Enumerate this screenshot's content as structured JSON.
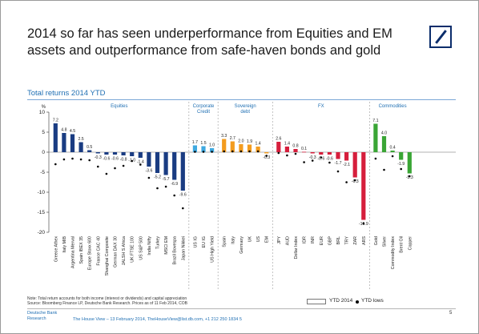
{
  "slide": {
    "title": "2014 so far has seen underperformance from Equities and EM assets and outperformance from safe-haven bonds and gold",
    "subtitle": "Total returns 2014 YTD",
    "note_line1": "Note: Total return accounts for both income (interest or dividends) and capital appreciation",
    "note_line2": "Source: Bloomberg Finance LP, Deutsche Bank Research. Prices as of 11 Feb 2014, COB",
    "footer_brand_line1": "Deutsche Bank",
    "footer_brand_line2": "Research",
    "footer_text": "The House View – 13 February 2014, TheHouseView@list.db.com, +1 212 250 1834 5",
    "page_number": "5",
    "brand_color": "#0b2d6b"
  },
  "chart_data": {
    "type": "bar",
    "ylabel": "%",
    "ylim": [
      -20,
      10
    ],
    "yticks": [
      10,
      5,
      0,
      -5,
      -10,
      -15,
      -20
    ],
    "legend": [
      {
        "label": "YTD 2014",
        "style": "outlined bar"
      },
      {
        "label": "YTD lows",
        "style": "black dot"
      }
    ],
    "groups": [
      {
        "name": "Equities",
        "color": "#1a3c82",
        "categories": [
          "Greece Athex",
          "Italy MIB",
          "Argentina Merval",
          "Spain IBEX 35",
          "Europe Stoxx 600",
          "France CAC 40",
          "Shanghai Composite",
          "German DAX 30",
          "JALSH S Africa",
          "UK FTSE 100",
          "US S&P 500",
          "India Nifty",
          "Turkey",
          "MSCI EM",
          "Brazil Bovespa",
          "Japan Nikkei"
        ],
        "values": [
          7.2,
          4.8,
          4.5,
          2.5,
          0.5,
          -0.3,
          -0.6,
          -0.6,
          -0.8,
          -1.0,
          -1.4,
          -3.6,
          -5.2,
          -5.7,
          -6.9,
          -9.6
        ],
        "value_labels": [
          "7.2",
          "4.8",
          "4.5",
          "2.5",
          "0.5",
          "-0.3",
          "-0.6",
          "-0.6",
          "-0.8",
          "-1.0",
          "-1.4",
          "-3.6",
          "-5.2",
          "-5.7",
          "-6.9",
          "-9.6"
        ],
        "lows": [
          -3.0,
          -1.8,
          -1.6,
          -1.8,
          -2.0,
          -3.6,
          -5.4,
          -4.0,
          -3.4,
          -2.2,
          -3.1,
          -6.4,
          -9.0,
          -8.6,
          -10.8,
          -14.0
        ]
      },
      {
        "name": "Corporate Credit",
        "color": "#3fa9e0",
        "categories": [
          "US IG",
          "EU IG",
          "US High Yield"
        ],
        "values": [
          1.7,
          1.5,
          1.0
        ],
        "value_labels": [
          "1.7",
          "1.5",
          "1.0"
        ],
        "lows": [
          0.1,
          0.1,
          0.1
        ]
      },
      {
        "name": "Sovereign debt",
        "color": "#f39c1f",
        "categories": [
          "Spain",
          "Italy",
          "Germany",
          "UK",
          "US",
          "EM"
        ],
        "values": [
          3.3,
          2.7,
          2.0,
          1.9,
          1.4,
          -0.3
        ],
        "value_labels": [
          "3.3",
          "2.7",
          "2.0",
          "1.9",
          "1.4",
          "-0.3"
        ],
        "lows": [
          0.2,
          0.2,
          0.2,
          0.2,
          0.2,
          -0.9
        ]
      },
      {
        "name": "FX",
        "color": "#d61e3c",
        "categories": [
          "JPY",
          "AUD",
          "Dollar Index",
          "IDR",
          "INR",
          "EUR",
          "GBP",
          "BRL",
          "TRY",
          "ZAR",
          "ARS"
        ],
        "values": [
          2.6,
          1.4,
          0.8,
          0.1,
          -0.3,
          -0.6,
          -0.6,
          -1.7,
          -2.1,
          -6.3,
          -16.9
        ],
        "value_labels": [
          "2.6",
          "1.4",
          "0.8",
          "0.1",
          "-0.3",
          "-0.6",
          "-0.6",
          "-1.7",
          "-2.1",
          "-6.3",
          "-16.9"
        ],
        "lows": [
          -0.2,
          -0.8,
          -0.4,
          -2.5,
          -2.1,
          -1.3,
          -2.6,
          -4.8,
          -7.5,
          -7.0,
          -17.8
        ]
      },
      {
        "name": "Commodities",
        "color": "#3aa535",
        "categories": [
          "Gold",
          "Silver",
          "Commodity Index",
          "Brent Oil",
          "Copper"
        ],
        "values": [
          7.1,
          4.0,
          0.4,
          -1.9,
          -5.3
        ],
        "value_labels": [
          "7.1",
          "4.0",
          "0.4",
          "-1.9",
          "-5.3"
        ],
        "lows": [
          -1.6,
          -4.4,
          -1.0,
          -4.2,
          -6.0
        ]
      }
    ]
  }
}
